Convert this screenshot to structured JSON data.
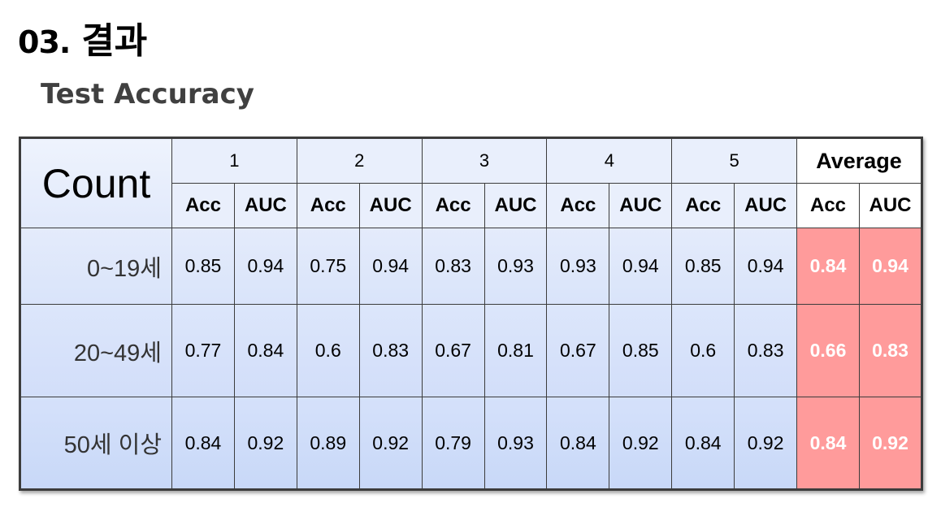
{
  "heading": {
    "number": "03.",
    "text": "결과"
  },
  "subtitle": "Test Accuracy",
  "table": {
    "corner_label": "Count",
    "folds": [
      "1",
      "2",
      "3",
      "4",
      "5"
    ],
    "average_label": "Average",
    "sub_acc": "Acc",
    "sub_auc": "AUC",
    "rows": [
      {
        "label": "0~19세",
        "values": [
          "0.85",
          "0.94",
          "0.75",
          "0.94",
          "0.83",
          "0.93",
          "0.93",
          "0.94",
          "0.85",
          "0.94"
        ],
        "avg": [
          "0.84",
          "0.94"
        ]
      },
      {
        "label": "20~49세",
        "values": [
          "0.77",
          "0.84",
          "0.6",
          "0.83",
          "0.67",
          "0.81",
          "0.67",
          "0.85",
          "0.6",
          "0.83"
        ],
        "avg": [
          "0.66",
          "0.83"
        ]
      },
      {
        "label": "50세 이상",
        "values": [
          "0.84",
          "0.92",
          "0.89",
          "0.92",
          "0.79",
          "0.93",
          "0.84",
          "0.92",
          "0.84",
          "0.92"
        ],
        "avg": [
          "0.84",
          "0.92"
        ]
      }
    ]
  },
  "colors": {
    "average_highlight": "#ff9b9b",
    "header_bg": "#e9effc",
    "row_bg": "#d9e4fa",
    "border": "#3c3c3c"
  }
}
